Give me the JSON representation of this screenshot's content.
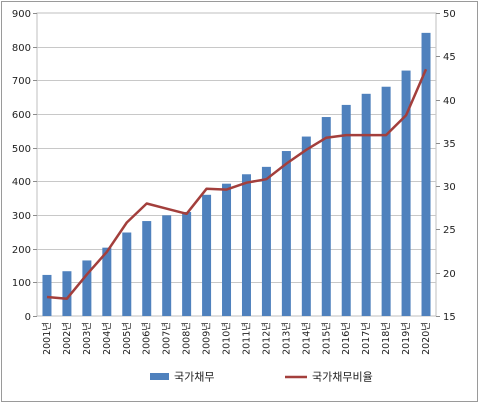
{
  "chart_data": {
    "type": "bar+line",
    "categories": [
      "2001년",
      "2002년",
      "2003년",
      "2004년",
      "2005년",
      "2006년",
      "2007년",
      "2008년",
      "2009년",
      "2010년",
      "2011년",
      "2012년",
      "2013년",
      "2014년",
      "2015년",
      "2016년",
      "2017년",
      "2018년",
      "2019년",
      "2020년"
    ],
    "series": [
      {
        "name": "국가채무",
        "type": "bar",
        "axis": "left",
        "color": "#4f81bd",
        "values": [
          122,
          133,
          165,
          203,
          248,
          282,
          299,
          309,
          360,
          393,
          421,
          443,
          490,
          533,
          591,
          627,
          660,
          681,
          729,
          841
        ]
      },
      {
        "name": "국가채무비율",
        "type": "line",
        "axis": "right",
        "color": "#a33f3c",
        "values": [
          17.2,
          17.0,
          19.8,
          22.4,
          25.8,
          28.0,
          27.4,
          26.8,
          29.7,
          29.6,
          30.4,
          30.8,
          32.6,
          34.2,
          35.6,
          35.9,
          35.9,
          35.9,
          38.2,
          43.5
        ]
      }
    ],
    "ylim_left": [
      0,
      900
    ],
    "yticks_left": [
      "0",
      "100",
      "200",
      "300",
      "400",
      "500",
      "600",
      "700",
      "800",
      "900"
    ],
    "ylim_right": [
      15,
      50
    ],
    "yticks_right": [
      "15",
      "20",
      "25",
      "30",
      "35",
      "40",
      "45",
      "50"
    ],
    "grid": true,
    "legend_position": "bottom",
    "title": "",
    "xlabel": "",
    "ylabel": ""
  }
}
